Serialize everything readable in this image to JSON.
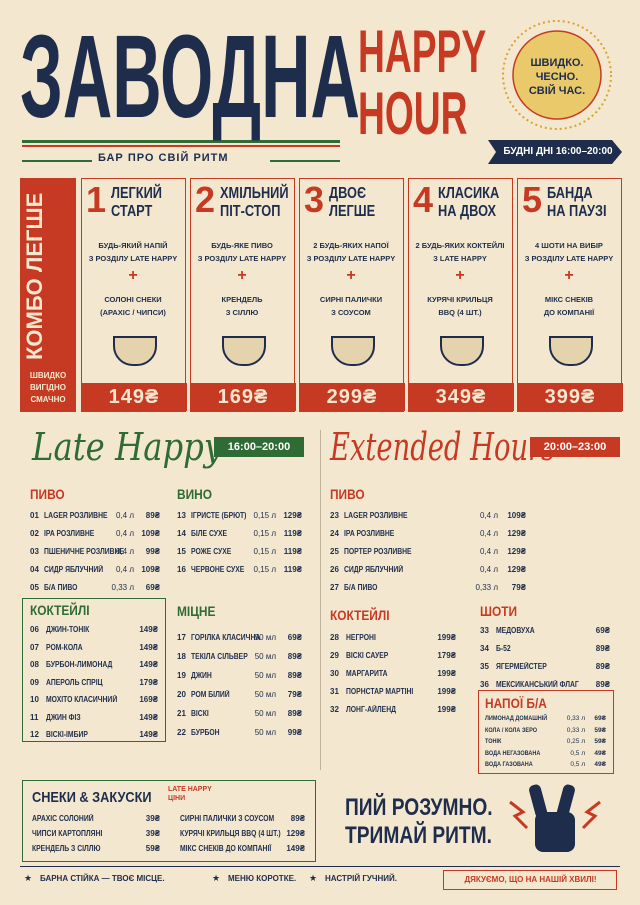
{
  "header": {
    "title": "ЗАВОДНА",
    "subtitle": "БАР ПРО СВІЙ РИТМ",
    "happy": "HAPPY",
    "hour": "HOUR",
    "badge": [
      "ШВИДКО.",
      "ЧЕСНО.",
      "СВІЙ ЧАС."
    ],
    "schedule": "БУДНІ ДНІ 16:00–20:00"
  },
  "combo": {
    "label": "КОМБО ЛЕГШЕ",
    "tagline": [
      "ШВИДКО",
      "ВИГІДНО",
      "СМАЧНО"
    ],
    "cards": [
      {
        "number": "1",
        "title": [
          "ЛЕГКИЙ",
          "СТАРТ"
        ],
        "item1": [
          "БУДЬ-ЯКИЙ НАПІЙ",
          "З РОЗДІЛУ LATE HAPPY"
        ],
        "plus": "+",
        "item2": [
          "СОЛОНІ СНЕКИ",
          "(АРАХІС / ЧИПСИ)"
        ],
        "price": "149₴"
      },
      {
        "number": "2",
        "title": [
          "ХМІЛЬНИЙ",
          "ПІТ-СТОП"
        ],
        "item1": [
          "БУДЬ-ЯКЕ ПИВО",
          "З РОЗДІЛУ LATE HAPPY"
        ],
        "plus": "+",
        "item2": [
          "КРЕНДЕЛЬ",
          "З СІЛЛЮ"
        ],
        "price": "169₴"
      },
      {
        "number": "3",
        "title": [
          "ДВОЄ",
          "ЛЕГШЕ"
        ],
        "item1": [
          "2 БУДЬ-ЯКИХ НАПОЇ",
          "З РОЗДІЛУ LATE HAPPY"
        ],
        "plus": "+",
        "item2": [
          "СИРНІ ПАЛИЧКИ",
          "З СОУСОМ"
        ],
        "price": "299₴"
      },
      {
        "number": "4",
        "title": [
          "КЛАСИКА",
          "НА ДВОХ"
        ],
        "item1": [
          "2 БУДЬ-ЯКИХ КОКТЕЙЛІ",
          "З LATE HAPPY"
        ],
        "plus": "+",
        "item2": [
          "КУРЯЧІ КРИЛЬЦЯ",
          "BBQ (4 ШТ.)"
        ],
        "price": "349₴"
      },
      {
        "number": "5",
        "title": [
          "БАНДА",
          "НА ПАУЗІ"
        ],
        "item1": [
          "4 ШОТИ НА ВИБІР",
          "З РОЗДІЛУ LATE HAPPY"
        ],
        "plus": "+",
        "item2": [
          "МІКС СНЕКІВ",
          "ДО КОМПАНІЇ"
        ],
        "price": "399₴"
      }
    ]
  },
  "late_happy": {
    "title": "Late Happy",
    "hours": "16:00–20:00",
    "sections": [
      {
        "title": "ПИВО",
        "items": [
          {
            "number": "01",
            "name": "LAGER РОЗЛИВНЕ",
            "volume": "0,4 л",
            "price": "89₴"
          },
          {
            "number": "02",
            "name": "IPA РОЗЛИВНЕ",
            "volume": "0,4 л",
            "price": "109₴"
          },
          {
            "number": "03",
            "name": "ПШЕНИЧНЕ РОЗЛИВНЕ",
            "volume": "0,4 л",
            "price": "99₴"
          },
          {
            "number": "04",
            "name": "СИДР ЯБЛУЧНИЙ",
            "volume": "0,4 л",
            "price": "109₴"
          },
          {
            "number": "05",
            "name": "Б/А ПИВО",
            "volume": "0,33 л",
            "price": "69₴"
          }
        ]
      },
      {
        "title": "ВИНО",
        "items": [
          {
            "number": "13",
            "name": "ІГРИСТЕ (БРЮТ)",
            "volume": "0,15 л",
            "price": "129₴"
          },
          {
            "number": "14",
            "name": "БІЛЕ СУХЕ",
            "volume": "0,15 л",
            "price": "119₴"
          },
          {
            "number": "15",
            "name": "РОЖЕ СУХЕ",
            "volume": "0,15 л",
            "price": "119₴"
          },
          {
            "number": "16",
            "name": "ЧЕРВОНЕ СУХЕ",
            "volume": "0,15 л",
            "price": "119₴"
          }
        ]
      },
      {
        "title": "КОКТЕЙЛІ",
        "items": [
          {
            "number": "06",
            "name": "ДЖИН-ТОНІК",
            "price": "149₴"
          },
          {
            "number": "07",
            "name": "РОМ-КОЛА",
            "price": "149₴"
          },
          {
            "number": "08",
            "name": "БУРБОН-ЛИМОНАД",
            "price": "149₴"
          },
          {
            "number": "09",
            "name": "АПЕРОЛЬ СПРІЦ",
            "price": "179₴"
          },
          {
            "number": "10",
            "name": "МОХІТО КЛАСИЧНИЙ",
            "price": "169₴"
          },
          {
            "number": "11",
            "name": "ДЖИН ФІЗ",
            "price": "149₴"
          },
          {
            "number": "12",
            "name": "ВІСКІ-ІМБИР",
            "price": "149₴"
          }
        ]
      },
      {
        "title": "МІЦНЕ",
        "items": [
          {
            "number": "17",
            "name": "ГОРІЛКА КЛАСИЧНА",
            "volume": "50 мл",
            "price": "69₴"
          },
          {
            "number": "18",
            "name": "ТЕКІЛА СІЛЬВЕР",
            "volume": "50 мл",
            "price": "89₴"
          },
          {
            "number": "19",
            "name": "ДЖИН",
            "volume": "50 мл",
            "price": "89₴"
          },
          {
            "number": "20",
            "name": "РОМ БІЛИЙ",
            "volume": "50 мл",
            "price": "79₴"
          },
          {
            "number": "21",
            "name": "ВІСКІ",
            "volume": "50 мл",
            "price": "89₴"
          },
          {
            "number": "22",
            "name": "БУРБОН",
            "volume": "50 мл",
            "price": "99₴"
          }
        ]
      }
    ]
  },
  "extended_hours": {
    "title": "Extended Hours",
    "hours": "20:00–23:00",
    "sections": [
      {
        "title": "ПИВО",
        "items": [
          {
            "number": "23",
            "name": "LAGER РОЗЛИВНЕ",
            "volume": "0,4 л",
            "price": "109₴"
          },
          {
            "number": "24",
            "name": "IPA РОЗЛИВНЕ",
            "volume": "0,4 л",
            "price": "129₴"
          },
          {
            "number": "25",
            "name": "ПОРТЕР РОЗЛИВНЕ",
            "volume": "0,4 л",
            "price": "129₴"
          },
          {
            "number": "26",
            "name": "СИДР ЯБЛУЧНИЙ",
            "volume": "0,4 л",
            "price": "129₴"
          },
          {
            "number": "27",
            "name": "Б/А ПИВО",
            "volume": "0,33 л",
            "price": "79₴"
          }
        ]
      },
      {
        "title": "КОКТЕЙЛІ",
        "items": [
          {
            "number": "28",
            "name": "НЕГРОНІ",
            "price": "199₴"
          },
          {
            "number": "29",
            "name": "ВІСКІ САУЕР",
            "price": "179₴"
          },
          {
            "number": "30",
            "name": "МАРГАРИТА",
            "price": "199₴"
          },
          {
            "number": "31",
            "name": "ПОРНСТАР МАРТІНІ",
            "price": "199₴"
          },
          {
            "number": "32",
            "name": "ЛОНГ-АЙЛЕНД",
            "price": "199₴"
          }
        ]
      },
      {
        "title": "ШОТИ",
        "items": [
          {
            "number": "33",
            "name": "МЕДОВУХА",
            "price": "69₴"
          },
          {
            "number": "34",
            "name": "Б-52",
            "price": "89₴"
          },
          {
            "number": "35",
            "name": "ЯГЕРМЕЙСТЕР",
            "price": "89₴"
          },
          {
            "number": "36",
            "name": "МЕКСИКАНСЬКИЙ ФЛАГ",
            "price": "89₴"
          }
        ]
      },
      {
        "title": "НАПОЇ Б/А",
        "items": [
          {
            "name": "ЛИМОНАД ДОМАШНІЙ",
            "volume": "0,33 л",
            "price": "69₴"
          },
          {
            "name": "КОЛА / КОЛА ЗЕРО",
            "volume": "0,33 л",
            "price": "59₴"
          },
          {
            "name": "ТОНІК",
            "volume": "0,25 л",
            "price": "59₴"
          },
          {
            "name": "ВОДА НЕГАЗОВАНА",
            "volume": "0,5 л",
            "price": "49₴"
          },
          {
            "name": "ВОДА ГАЗОВАНА",
            "volume": "0,5 л",
            "price": "49₴"
          }
        ]
      }
    ]
  },
  "snacks": {
    "title": "СНЕКИ & ЗАКУСКИ",
    "note": [
      "LATE HAPPY",
      "ЦІНИ"
    ],
    "items": [
      {
        "name": "АРАХІС СОЛОНИЙ",
        "price": "39₴"
      },
      {
        "name": "ЧИПСИ КАРТОПЛЯНІ",
        "price": "39₴"
      },
      {
        "name": "КРЕНДЕЛЬ З СІЛЛЮ",
        "price": "59₴"
      },
      {
        "name": "СИРНІ ПАЛИЧКИ З СОУСОМ",
        "price": "89₴"
      },
      {
        "name": "КУРЯЧІ КРИЛЬЦЯ BBQ (4 ШТ.)",
        "price": "129₴"
      },
      {
        "name": "МІКС СНЕКІВ ДО КОМПАНІЇ",
        "price": "149₴"
      }
    ]
  },
  "slogan": [
    "ПИЙ РОЗУМНО.",
    "ТРИМАЙ РИТМ."
  ],
  "footer": {
    "items": [
      "БАРНА СТІЙКА — ТВОЄ МІСЦЕ.",
      "МЕНЮ КОРОТКЕ.",
      "НАСТРІЙ ГУЧНИЙ."
    ],
    "thanks": "ДЯКУЄМО, ЩО НА НАШІЙ ХВИЛІ!"
  }
}
